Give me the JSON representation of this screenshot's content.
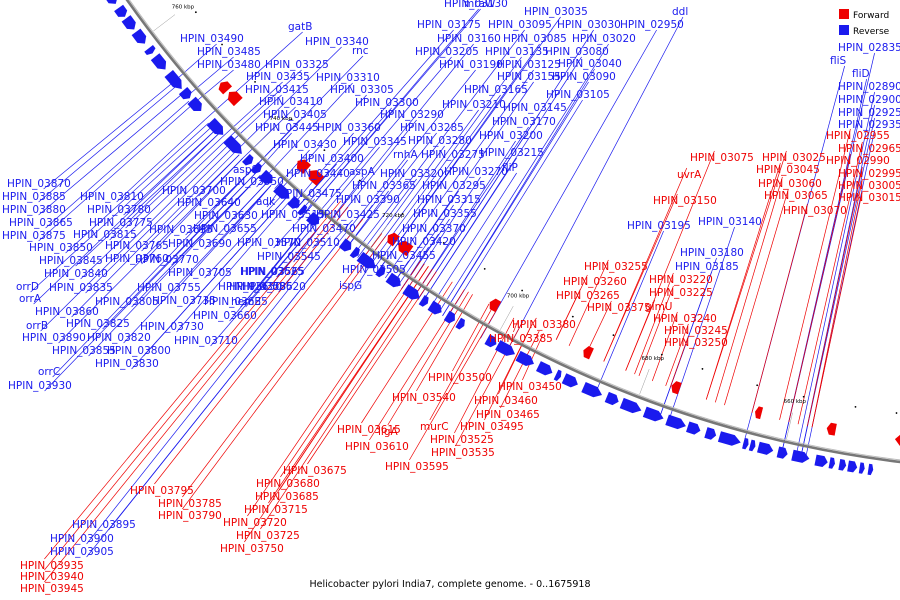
{
  "caption": "Helicobacter pylori India7, complete genome. - 0..1675918",
  "legend": [
    {
      "label": "Forward",
      "color": "#ee0000"
    },
    {
      "label": "Reverse",
      "color": "#1a1aee"
    }
  ],
  "colors": {
    "forward": "#ee0000",
    "reverse": "#1a1aee",
    "backbone": "#777777"
  },
  "scale_labels": [
    "580 kbp",
    "600 kbp",
    "620 kbp",
    "640 kbp",
    "660 kbp",
    "680 kbp",
    "700 kbp",
    "720 kbp",
    "740 kbp",
    "760 kbp",
    "780 kbp",
    "800 kbp"
  ],
  "reverse_genes": [
    "HPIN_03130",
    "mraW",
    "HPIN_03035",
    "ddl",
    "HPIN_03175",
    "HPIN_03095",
    "HPIN_03030",
    "HPIN_02950",
    "HPIN_03160",
    "HPIN_03085",
    "HPIN_03020",
    "HPIN_03205",
    "HPIN_03135",
    "HPIN_03080",
    "HPIN_03190",
    "HPIN_03125",
    "HPIN_03040",
    "HPIN_03155",
    "HPIN_03090",
    "HPIN_03165",
    "HPIN_03105",
    "HPIN_03210",
    "HPIN_03145",
    "HPIN_03170",
    "HPIN_03200",
    "HPIN_03215",
    "fliP",
    "HPIN_03270",
    "HPIN_03295",
    "HPIN_03315",
    "HPIN_03355",
    "HPIN_03370",
    "HPIN_03420",
    "HPIN_03455",
    "HPIN_03505",
    "ispG",
    "gatB",
    "HPIN_03340",
    "rnc",
    "HPIN_03325",
    "HPIN_03310",
    "HPIN_03305",
    "HPIN_03300",
    "HPIN_03290",
    "HPIN_03285",
    "HPIN_03280",
    "rnhA",
    "HPIN_03275",
    "HPIN_03320",
    "HPIN_03365",
    "HPIN_03390",
    "HPIN_03425",
    "HPIN_03470",
    "HPIN_03510",
    "HPIN_03545",
    "HPIN_03565",
    "HPIN_03585",
    "HPIN_03635",
    "HPIN_03660",
    "HPIN_03710",
    "HPIN_03490",
    "HPIN_03485",
    "HPIN_03480",
    "HPIN_03435",
    "HPIN_03415",
    "HPIN_03410",
    "HPIN_03405",
    "HPIN_03445",
    "HPIN_03360",
    "HPIN_03345",
    "HPIN_03430",
    "HPIN_03400",
    "HPIN_03440",
    "aspA",
    "HPIN_03475",
    "HPIN_03515",
    "HPIN_03570",
    "HPIN_03625",
    "HPIN_03620",
    "HPIN_03650",
    "hemE",
    "HPIN_03730",
    "aspS",
    "HPIN_03550",
    "adk",
    "HPIN_03640",
    "HPIN_03630",
    "HPIN_03655",
    "HPIN_03690",
    "HPIN_03705",
    "HPIN_03735",
    "HPIN_03700",
    "HPIN_03695",
    "HPIN_03755",
    "HPIN_03770",
    "HPIN_03760",
    "HPIN_03765",
    "HPIN_03870",
    "HPIN_03885",
    "HPIN_03810",
    "HPIN_03880",
    "HPIN_03780",
    "HPIN_03865",
    "HPIN_03775",
    "HPIN_03875",
    "HPIN_03815",
    "HPIN_03850",
    "HPIN_03845",
    "HPIN_03840",
    "HPIN_03835",
    "orrD",
    "orrA",
    "HPIN_03860",
    "HPIN_03805",
    "orrB",
    "HPIN_03825",
    "HPIN_03890",
    "HPIN_03820",
    "HPIN_03855",
    "HPIN_03800",
    "orrC",
    "HPIN_03830",
    "HPIN_03930",
    "HPIN_02835",
    "fliS",
    "fliD",
    "HPIN_02890",
    "HPIN_02900",
    "HPIN_02925",
    "HPIN_02935",
    "HPIN_03140",
    "HPIN_03195",
    "HPIN_03180",
    "HPIN_03185",
    "HPIN_03895",
    "HPIN_03900",
    "HPIN_03905"
  ],
  "forward_genes": [
    "HPIN_02955",
    "HPIN_02965",
    "HPIN_02990",
    "HPIN_02995",
    "HPIN_03005",
    "HPIN_03015",
    "HPIN_03025",
    "HPIN_03045",
    "HPIN_03060",
    "HPIN_03065",
    "HPIN_03070",
    "HPIN_03075",
    "uvrA",
    "HPIN_03150",
    "HPIN_03255",
    "HPIN_03220",
    "HPIN_03260",
    "HPIN_03225",
    "HPIN_03265",
    "glmU",
    "HPIN_03240",
    "HPIN_03245",
    "HPIN_03250",
    "HPIN_03375",
    "HPIN_03380",
    "HPIN_03385",
    "HPIN_03500",
    "HPIN_03450",
    "HPIN_03460",
    "HPIN_03465",
    "HPIN_03495",
    "HPIN_03540",
    "murC",
    "HPIN_03525",
    "HPIN_03535",
    "ligA",
    "HPIN_03615",
    "HPIN_03610",
    "HPIN_03595",
    "HPIN_03675",
    "HPIN_03680",
    "HPIN_03685",
    "HPIN_03715",
    "HPIN_03720",
    "HPIN_03725",
    "HPIN_03750",
    "HPIN_03795",
    "HPIN_03785",
    "HPIN_03790",
    "HPIN_03935",
    "HPIN_03940",
    "HPIN_03945"
  ]
}
